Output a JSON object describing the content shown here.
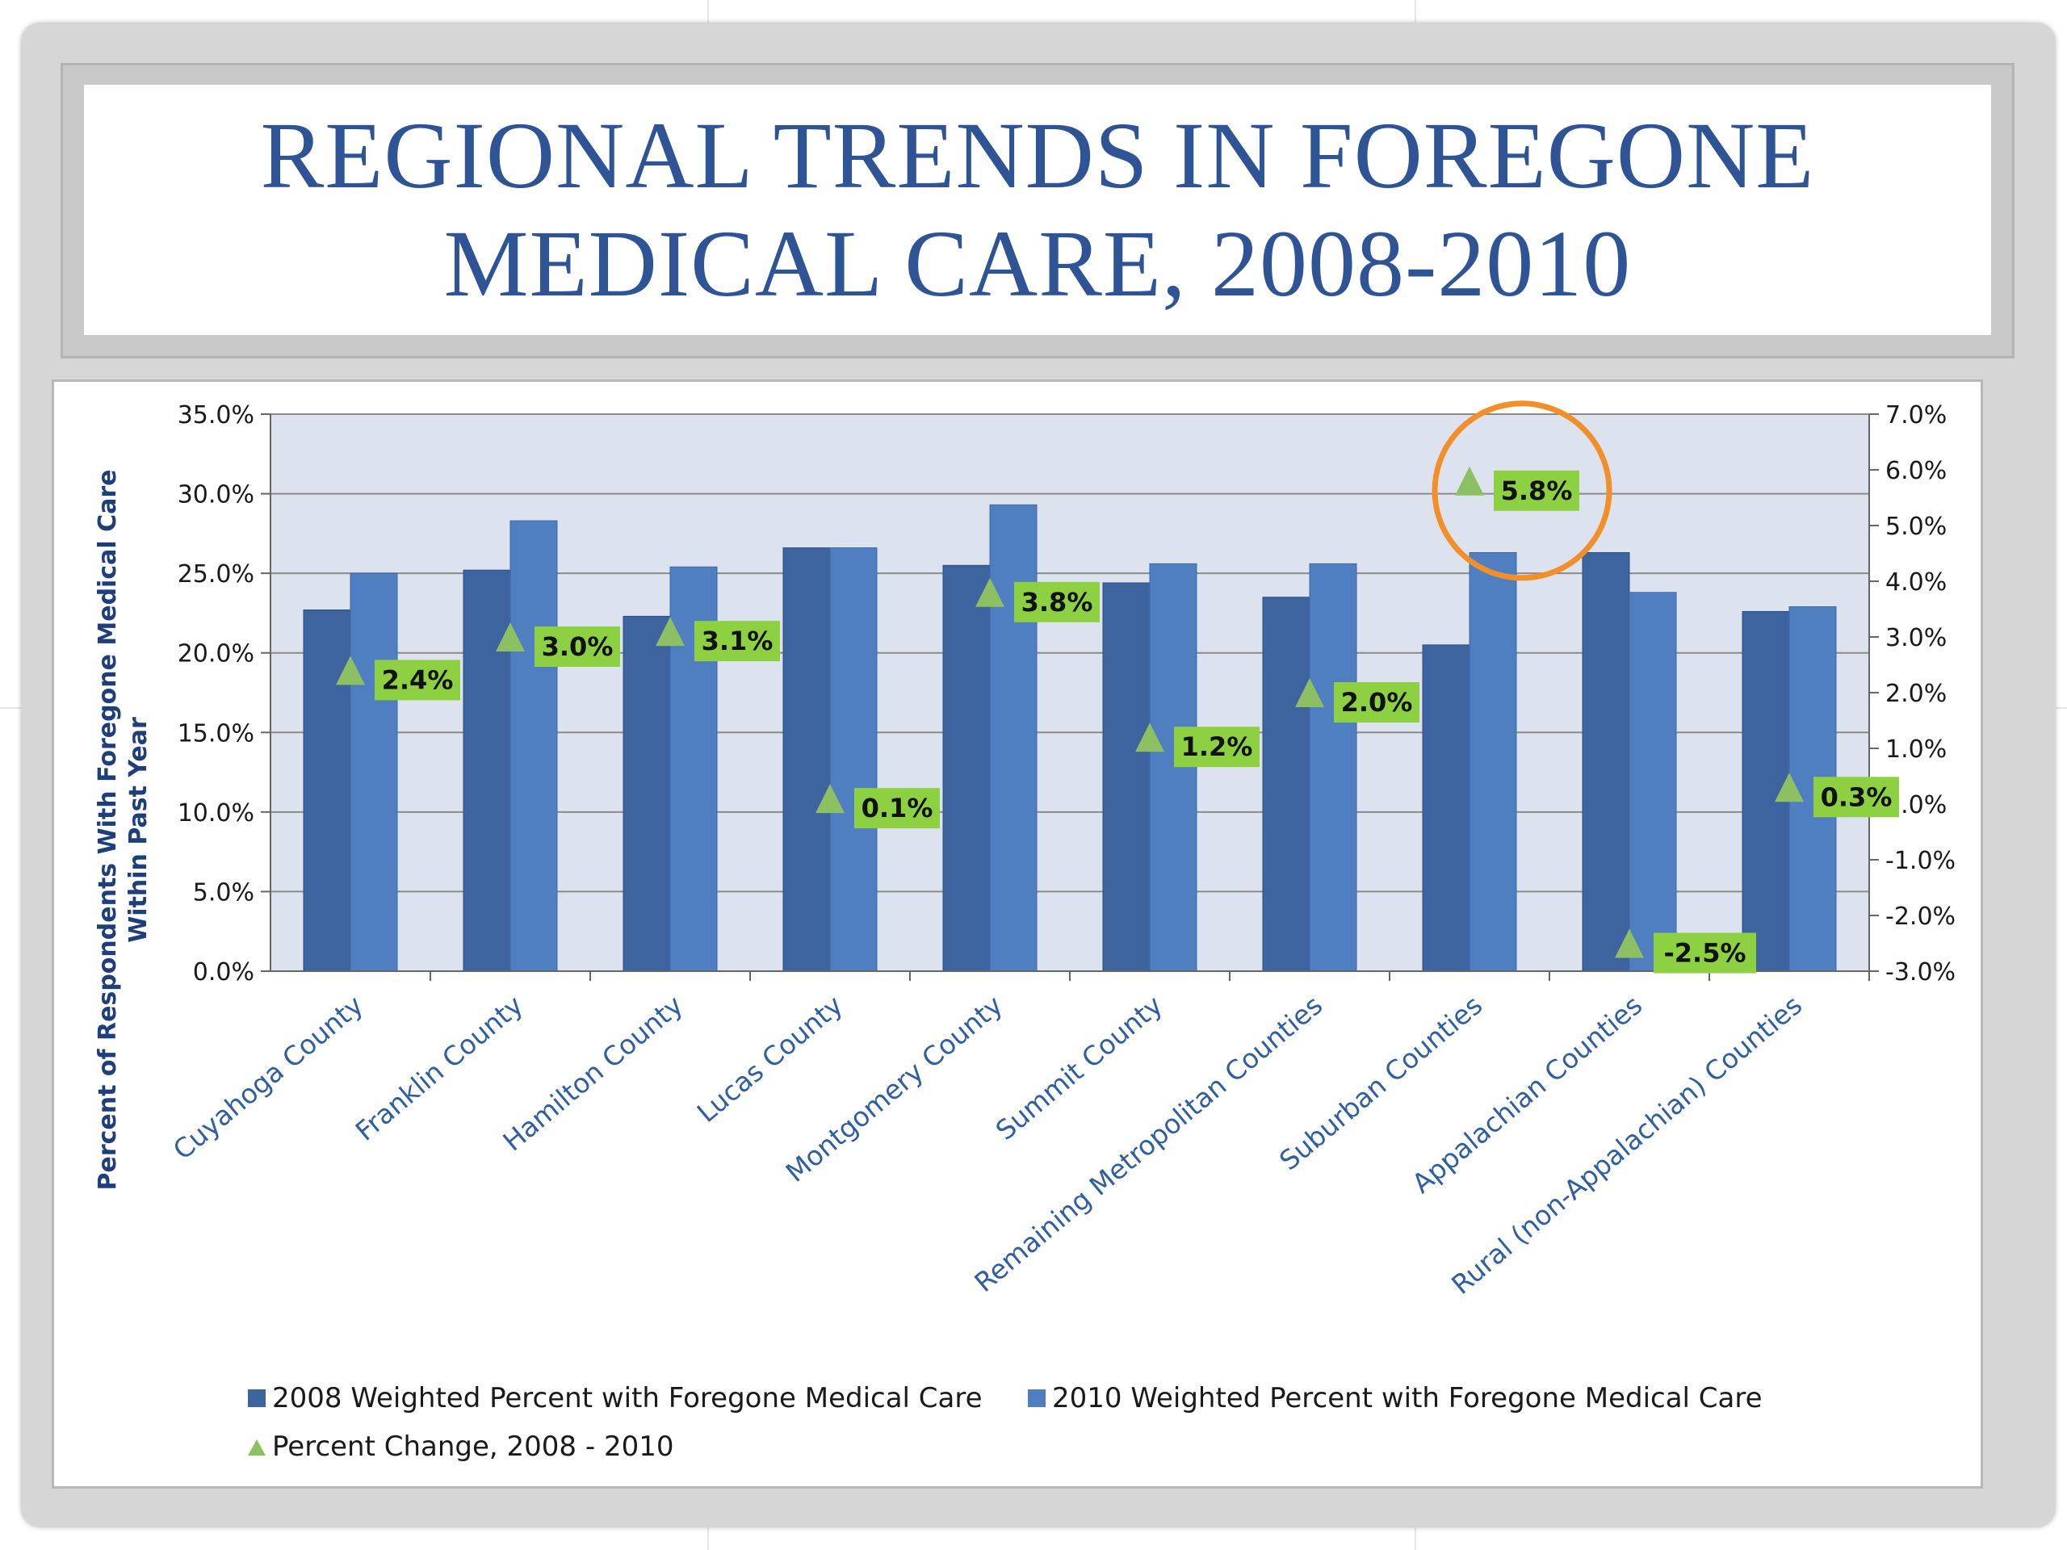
{
  "slide": {
    "title": "REGIONAL TRENDS IN FOREGONE\nMEDICAL CARE, 2008-2010"
  },
  "colors": {
    "series_2008": "#3e64a0",
    "series_2010": "#4f7fc0",
    "percent_change_marker": "#8cc062",
    "data_label_bg": "#8dd143",
    "highlight_circle": "#f28f2a",
    "plot_background": "#dde3ee"
  },
  "chart_data": {
    "type": "bar",
    "title": "",
    "ylabel": "Percent of Respondents With Foregone Medical Care Within Past Year",
    "ylabel_lines": [
      "Percent of Respondents With Foregone Medical Care",
      "Within Past Year"
    ],
    "ylim": [
      0,
      35
    ],
    "y_ticks": [
      "35.0%",
      "30.0%",
      "25.0%",
      "20.0%",
      "15.0%",
      "10.0%",
      "5.0%",
      "0.0%"
    ],
    "y2lim": [
      -3,
      7
    ],
    "y2_ticks": [
      "7.0%",
      "6.0%",
      "5.0%",
      "4.0%",
      "3.0%",
      "2.0%",
      "1.0%",
      "0.0%",
      "-1.0%",
      "-2.0%",
      "-3.0%"
    ],
    "grid": true,
    "categories": [
      "Cuyahoga County",
      "Franklin County",
      "Hamilton County",
      "Lucas County",
      "Montgomery County",
      "Summit County",
      "Remaining Metropolitan Counties",
      "Suburban Counties",
      "Appalachian Counties",
      "Rural (non-Appalachian) Counties"
    ],
    "series": [
      {
        "name": "2008 Weighted Percent with Foregone Medical Care",
        "axis": "primary",
        "type": "bar",
        "values": [
          22.7,
          25.2,
          22.3,
          26.6,
          25.5,
          24.4,
          23.5,
          20.5,
          26.3,
          22.6
        ]
      },
      {
        "name": "2010 Weighted Percent with Foregone Medical Care",
        "axis": "primary",
        "type": "bar",
        "values": [
          25.0,
          28.3,
          25.4,
          26.6,
          29.3,
          25.6,
          25.6,
          26.3,
          23.8,
          22.9
        ]
      },
      {
        "name": "Percent Change, 2008 - 2010",
        "axis": "secondary",
        "type": "marker",
        "values": [
          2.4,
          3.0,
          3.1,
          0.1,
          3.8,
          1.2,
          2.0,
          5.8,
          -2.5,
          0.3
        ],
        "labels": [
          "2.4%",
          "3.0%",
          "3.1%",
          "0.1%",
          "3.8%",
          "1.2%",
          "2.0%",
          "5.8%",
          "-2.5%",
          "0.3%"
        ]
      }
    ],
    "highlighted_category": "Suburban Counties",
    "legend": {
      "placement": "bottom",
      "entries": [
        "2008 Weighted Percent with Foregone Medical Care",
        "2010 Weighted Percent with Foregone Medical Care",
        "Percent Change, 2008 - 2010"
      ]
    }
  }
}
